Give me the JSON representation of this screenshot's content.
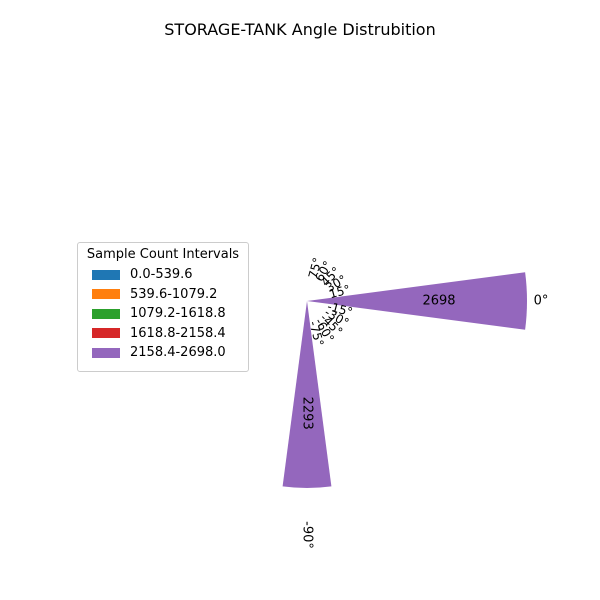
{
  "chart_data": {
    "type": "polar-bar",
    "title": "STORAGE-TANK Angle Distrubition",
    "legend": {
      "title": "Sample Count Intervals",
      "placement": "center-left",
      "entries": [
        {
          "label": "0.0-539.6",
          "color": "#1f77b4"
        },
        {
          "label": "539.6-1079.2",
          "color": "#ff7f0e"
        },
        {
          "label": "1079.2-1618.8",
          "color": "#2ca02c"
        },
        {
          "label": "1618.8-2158.4",
          "color": "#d62728"
        },
        {
          "label": "2158.4-2698.0",
          "color": "#9467bd"
        }
      ]
    },
    "theta_unit": "degrees",
    "bin_width_deg": 15,
    "bars": [
      {
        "angle": 0,
        "value": 2698,
        "label": "2698",
        "color": "#9467bd"
      },
      {
        "angle": -90,
        "value": 2293,
        "label": "2293",
        "color": "#9467bd"
      }
    ],
    "angle_tick_labels": [
      {
        "angle": 0,
        "label": "0°"
      },
      {
        "angle": -90,
        "label": "-90°"
      }
    ],
    "cluttered_tick_labels": [
      "75°",
      "60°",
      "45°",
      "30°",
      "15°",
      "-15°",
      "-30°",
      "-45°",
      "-60°",
      "-75°"
    ],
    "rmax": 2698
  }
}
